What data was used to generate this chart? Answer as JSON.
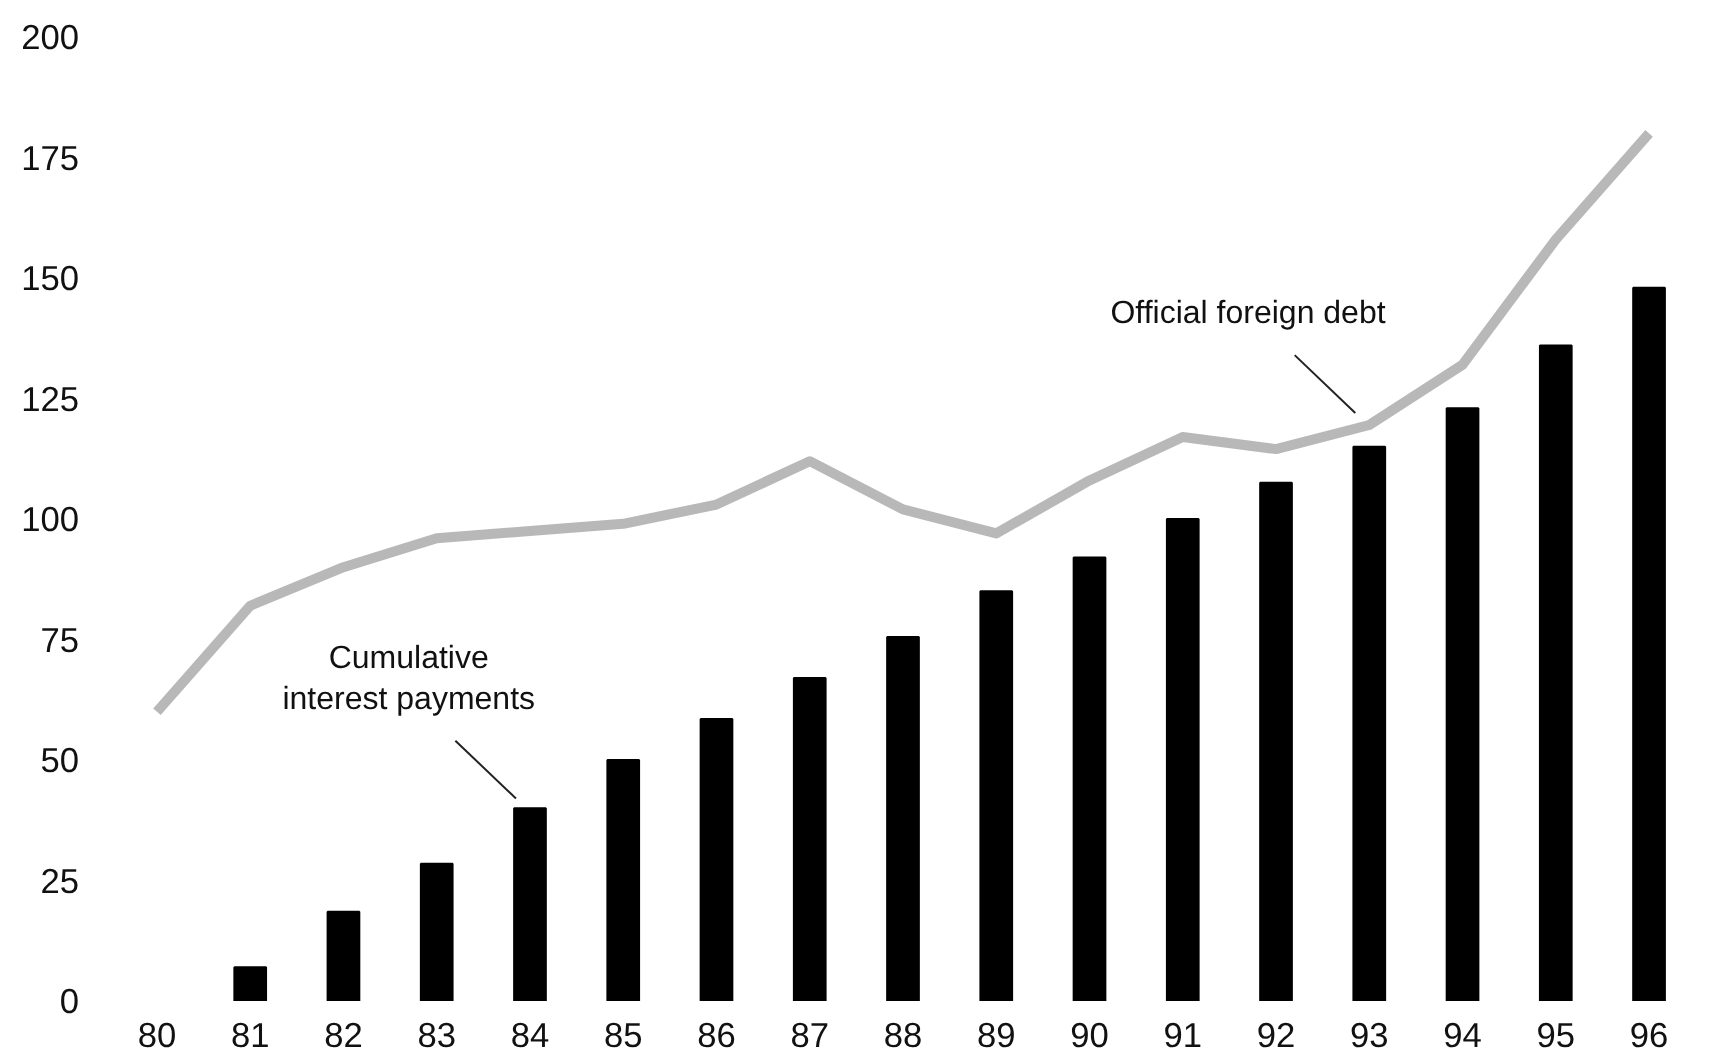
{
  "chart_data": {
    "type": "bar",
    "categories": [
      "80",
      "81",
      "82",
      "83",
      "84",
      "85",
      "86",
      "87",
      "88",
      "89",
      "90",
      "91",
      "92",
      "93",
      "94",
      "95",
      "96"
    ],
    "series": [
      {
        "color": "#000000",
        "values": [
          null,
          7,
          18.5,
          28.5,
          40,
          50,
          58.5,
          67,
          75.5,
          85,
          92,
          100,
          107.5,
          115,
          123,
          136,
          148
        ]
      },
      {
        "type": "line",
        "color": "#b8b8b8",
        "values": [
          60,
          82,
          90,
          96,
          97.5,
          99,
          103,
          112,
          102,
          97,
          108,
          117,
          114.5,
          119.5,
          132,
          158,
          180
        ]
      }
    ],
    "ylim": [
      0,
      200
    ],
    "yticks": [
      0,
      25,
      50,
      75,
      100,
      125,
      150,
      175,
      200
    ],
    "grid": false,
    "annotations": [
      {
        "text": "Cumulative\ninterest payments",
        "x": "84",
        "y": 40
      },
      {
        "text": "Official foreign debt",
        "x": "93",
        "y": 120
      }
    ]
  }
}
